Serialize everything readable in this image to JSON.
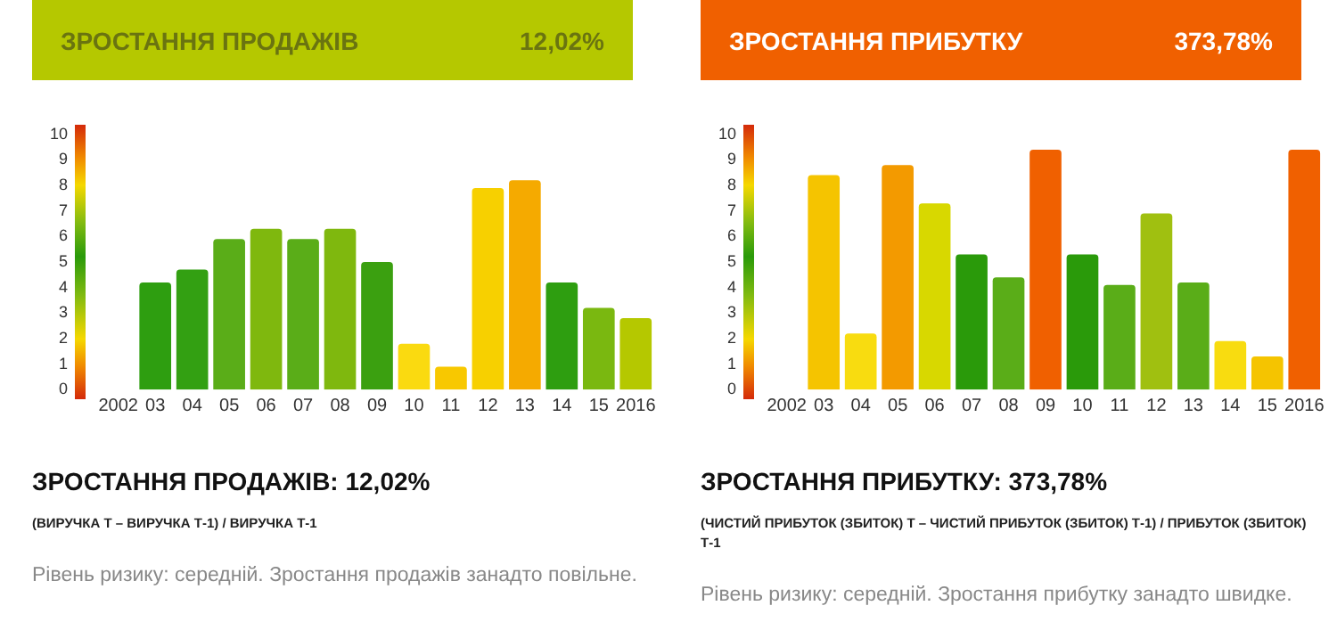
{
  "chart_data": [
    {
      "type": "bar",
      "title": "ЗРОСТАННЯ ПРОДАЖІВ",
      "categories": [
        "2002",
        "03",
        "04",
        "05",
        "06",
        "07",
        "08",
        "09",
        "10",
        "11",
        "12",
        "13",
        "14",
        "15",
        "2016"
      ],
      "values": [
        null,
        4.2,
        4.7,
        5.9,
        6.3,
        5.9,
        6.3,
        5.0,
        1.8,
        0.9,
        7.9,
        8.2,
        4.2,
        3.2,
        2.8
      ],
      "colors": [
        "#2e9e10",
        "#2e9e10",
        "#33a012",
        "#5aad18",
        "#7fb80e",
        "#5aad18",
        "#7fb80e",
        "#3ba010",
        "#fada10",
        "#f8c800",
        "#f7d000",
        "#f5aa00",
        "#2e9e10",
        "#7ab810",
        "#b5c800"
      ],
      "ylim": [
        0,
        10
      ],
      "yticks": [
        0,
        1,
        2,
        3,
        4,
        5,
        6,
        7,
        8,
        9,
        10
      ],
      "grid": false,
      "legend": false,
      "annotations": [
        "12,02%",
        "ЗРОСТАННЯ ПРОДАЖІВ: 12,02%",
        "(ВИРУЧКА Т – ВИРУЧКА Т-1) / ВИРУЧКА Т-1",
        "Рівень ризику: середній. Зростання продажів занадто повільне."
      ]
    },
    {
      "type": "bar",
      "title": "ЗРОСТАННЯ ПРИБУТКУ",
      "categories": [
        "2002",
        "03",
        "04",
        "05",
        "06",
        "07",
        "08",
        "09",
        "10",
        "11",
        "12",
        "13",
        "14",
        "15",
        "2016"
      ],
      "values": [
        null,
        8.4,
        2.2,
        8.8,
        7.3,
        5.3,
        4.4,
        9.4,
        5.3,
        4.1,
        6.9,
        4.2,
        1.9,
        1.3,
        9.4
      ],
      "colors": [
        "#f5c400",
        "#f5c400",
        "#f8dc10",
        "#f39a00",
        "#d8d800",
        "#2a9a0a",
        "#5aad18",
        "#f06000",
        "#2a9a0a",
        "#5aad18",
        "#a0c010",
        "#5aad18",
        "#f8dc10",
        "#f5c400",
        "#f06000"
      ],
      "ylim": [
        0,
        10
      ],
      "yticks": [
        0,
        1,
        2,
        3,
        4,
        5,
        6,
        7,
        8,
        9,
        10
      ],
      "grid": false,
      "legend": false,
      "annotations": [
        "373,78%",
        "ЗРОСТАННЯ ПРИБУТКУ: 373,78%",
        "(ЧИСТИЙ ПРИБУТОК (ЗБИТОК) Т – ЧИСТИЙ ПРИБУТОК (ЗБИТОК) Т-1) / ПРИБУТОК (ЗБИТОК) Т-1",
        "Рівень ризику: середній. Зростання прибутку занадто швидке."
      ]
    }
  ]
}
